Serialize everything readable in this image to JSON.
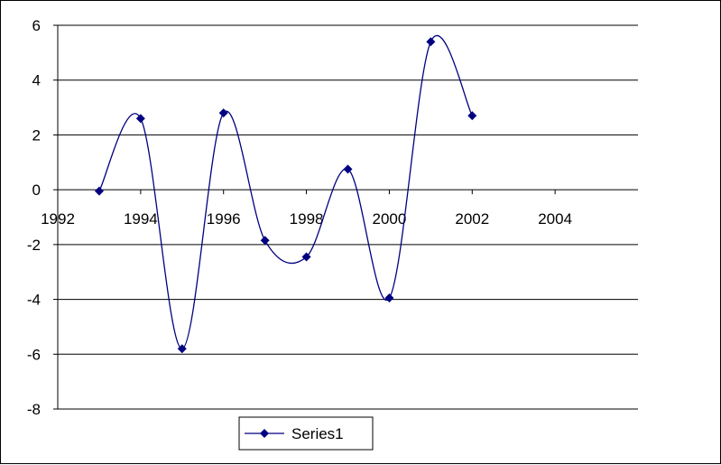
{
  "chart_data": {
    "type": "scatter",
    "smoothed_lines": true,
    "title": "",
    "xlabel": "",
    "ylabel": "",
    "xlim": [
      1992,
      2006
    ],
    "ylim": [
      -8,
      6
    ],
    "x_ticks": [
      1992,
      1994,
      1996,
      1998,
      2000,
      2002,
      2004
    ],
    "y_ticks": [
      6,
      4,
      2,
      0,
      -2,
      -4,
      -6,
      -8
    ],
    "x_tick_labels": [
      "1992",
      "1994",
      "1996",
      "1998",
      "2000",
      "2002",
      "2004"
    ],
    "y_tick_labels": [
      "6",
      "4",
      "2",
      "0",
      "-2",
      "-4",
      "-6",
      "-8"
    ],
    "grid": "horizontal major gridlines",
    "legend_position": "bottom",
    "series": [
      {
        "name": "Series1",
        "color": "#000080",
        "marker": "diamond",
        "x": [
          1993,
          1994,
          1995,
          1996,
          1997,
          1998,
          1999,
          2000,
          2001,
          2002
        ],
        "y": [
          -0.05,
          2.6,
          -5.8,
          2.8,
          -1.85,
          -2.45,
          0.75,
          -3.95,
          5.4,
          2.7
        ]
      }
    ],
    "legend": {
      "label": "Series1"
    }
  }
}
